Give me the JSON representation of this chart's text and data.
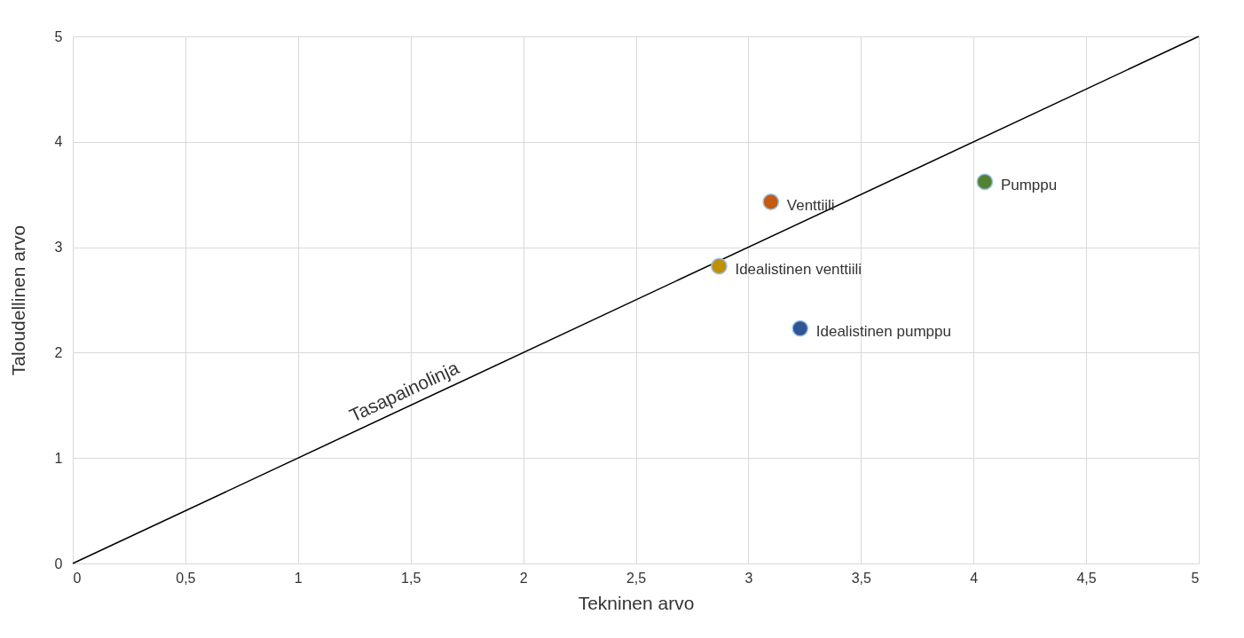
{
  "chart_data": {
    "type": "scatter",
    "xlabel": "Tekninen arvo",
    "ylabel": "Taloudellinen arvo",
    "xlim": [
      0,
      5
    ],
    "ylim": [
      0,
      5
    ],
    "xticks": [
      0,
      {
        "value": 0.5,
        "label": "0,5"
      },
      1,
      {
        "value": 1.5,
        "label": "1,5"
      },
      2,
      {
        "value": 2.5,
        "label": "2,5"
      },
      3,
      {
        "value": 3.5,
        "label": "3,5"
      },
      4,
      {
        "value": 4.5,
        "label": "4,5"
      },
      5
    ],
    "yticks": [
      0,
      1,
      2,
      3,
      4,
      5
    ],
    "grid": true,
    "marker": "circle",
    "series": [
      {
        "type": "line",
        "name": "Tasapainolinja",
        "color": "#000000",
        "marker": "none",
        "x": [
          0,
          5
        ],
        "values": [
          0,
          5
        ]
      },
      {
        "name": "Venttiili",
        "color": "#c55a11",
        "x": [
          3.1
        ],
        "values": [
          3.43
        ]
      },
      {
        "name": "Pumppu",
        "color": "#548235",
        "x": [
          4.05
        ],
        "values": [
          3.62
        ]
      },
      {
        "name": "Idealistinen venttiili",
        "color": "#bf9000",
        "x": [
          2.87
        ],
        "values": [
          2.82
        ]
      },
      {
        "name": "Idealistinen pumppu",
        "color": "#2f5597",
        "x": [
          3.23
        ],
        "values": [
          2.23
        ]
      }
    ]
  }
}
